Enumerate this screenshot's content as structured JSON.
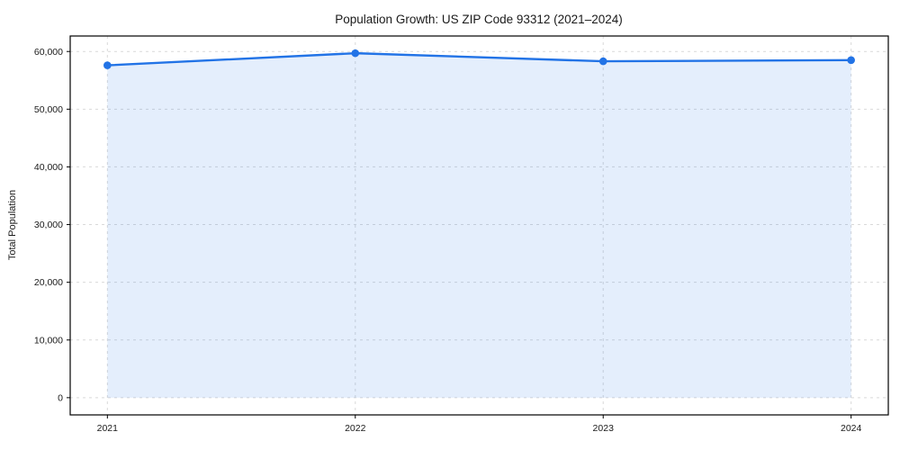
{
  "chart_data": {
    "type": "line",
    "title": "Population Growth: US ZIP Code 93312 (2021–2024)",
    "xlabel": "",
    "ylabel": "Total Population",
    "x": [
      2021,
      2022,
      2023,
      2024
    ],
    "series": [
      {
        "name": "Total Population",
        "values": [
          57600,
          59700,
          58300,
          58500
        ]
      }
    ],
    "xticks": [
      2021,
      2022,
      2023,
      2024
    ],
    "xtick_labels": [
      "2021",
      "2022",
      "2023",
      "2024"
    ],
    "yticks": [
      0,
      10000,
      20000,
      30000,
      40000,
      50000,
      60000
    ],
    "ytick_labels": [
      "0",
      "10,000",
      "20,000",
      "30,000",
      "40,000",
      "50,000",
      "60,000"
    ],
    "xlim": [
      2020.85,
      2024.15
    ],
    "ylim": [
      -2985,
      62685
    ],
    "grid": true,
    "legend": false,
    "marker": "circle",
    "area_fill": true,
    "colors": {
      "line": "#2273e6",
      "fill_opacity": 0.12,
      "grid": "#d9d9d9",
      "spine": "#000000",
      "background": "#ffffff",
      "text": "#1a1a1a"
    }
  }
}
